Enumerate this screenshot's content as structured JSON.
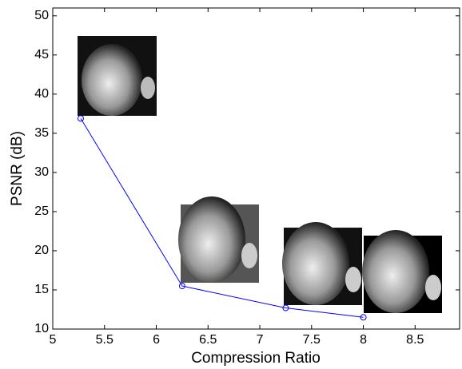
{
  "chart_data": {
    "type": "line",
    "x_label": "Compression Ratio",
    "y_label": "PSNR (dB)",
    "x": [
      5.27,
      6.25,
      7.25,
      8.0
    ],
    "series": [
      {
        "color": "#0000ff",
        "values": [
          36.9,
          15.5,
          12.7,
          11.5
        ]
      }
    ],
    "xlim": [
      5,
      8.93
    ],
    "ylim": [
      10,
      51
    ],
    "xticks": [
      5,
      5.5,
      6,
      6.5,
      7,
      7.5,
      8,
      8.5
    ],
    "yticks": [
      10,
      15,
      20,
      25,
      30,
      35,
      40,
      45,
      50
    ]
  }
}
